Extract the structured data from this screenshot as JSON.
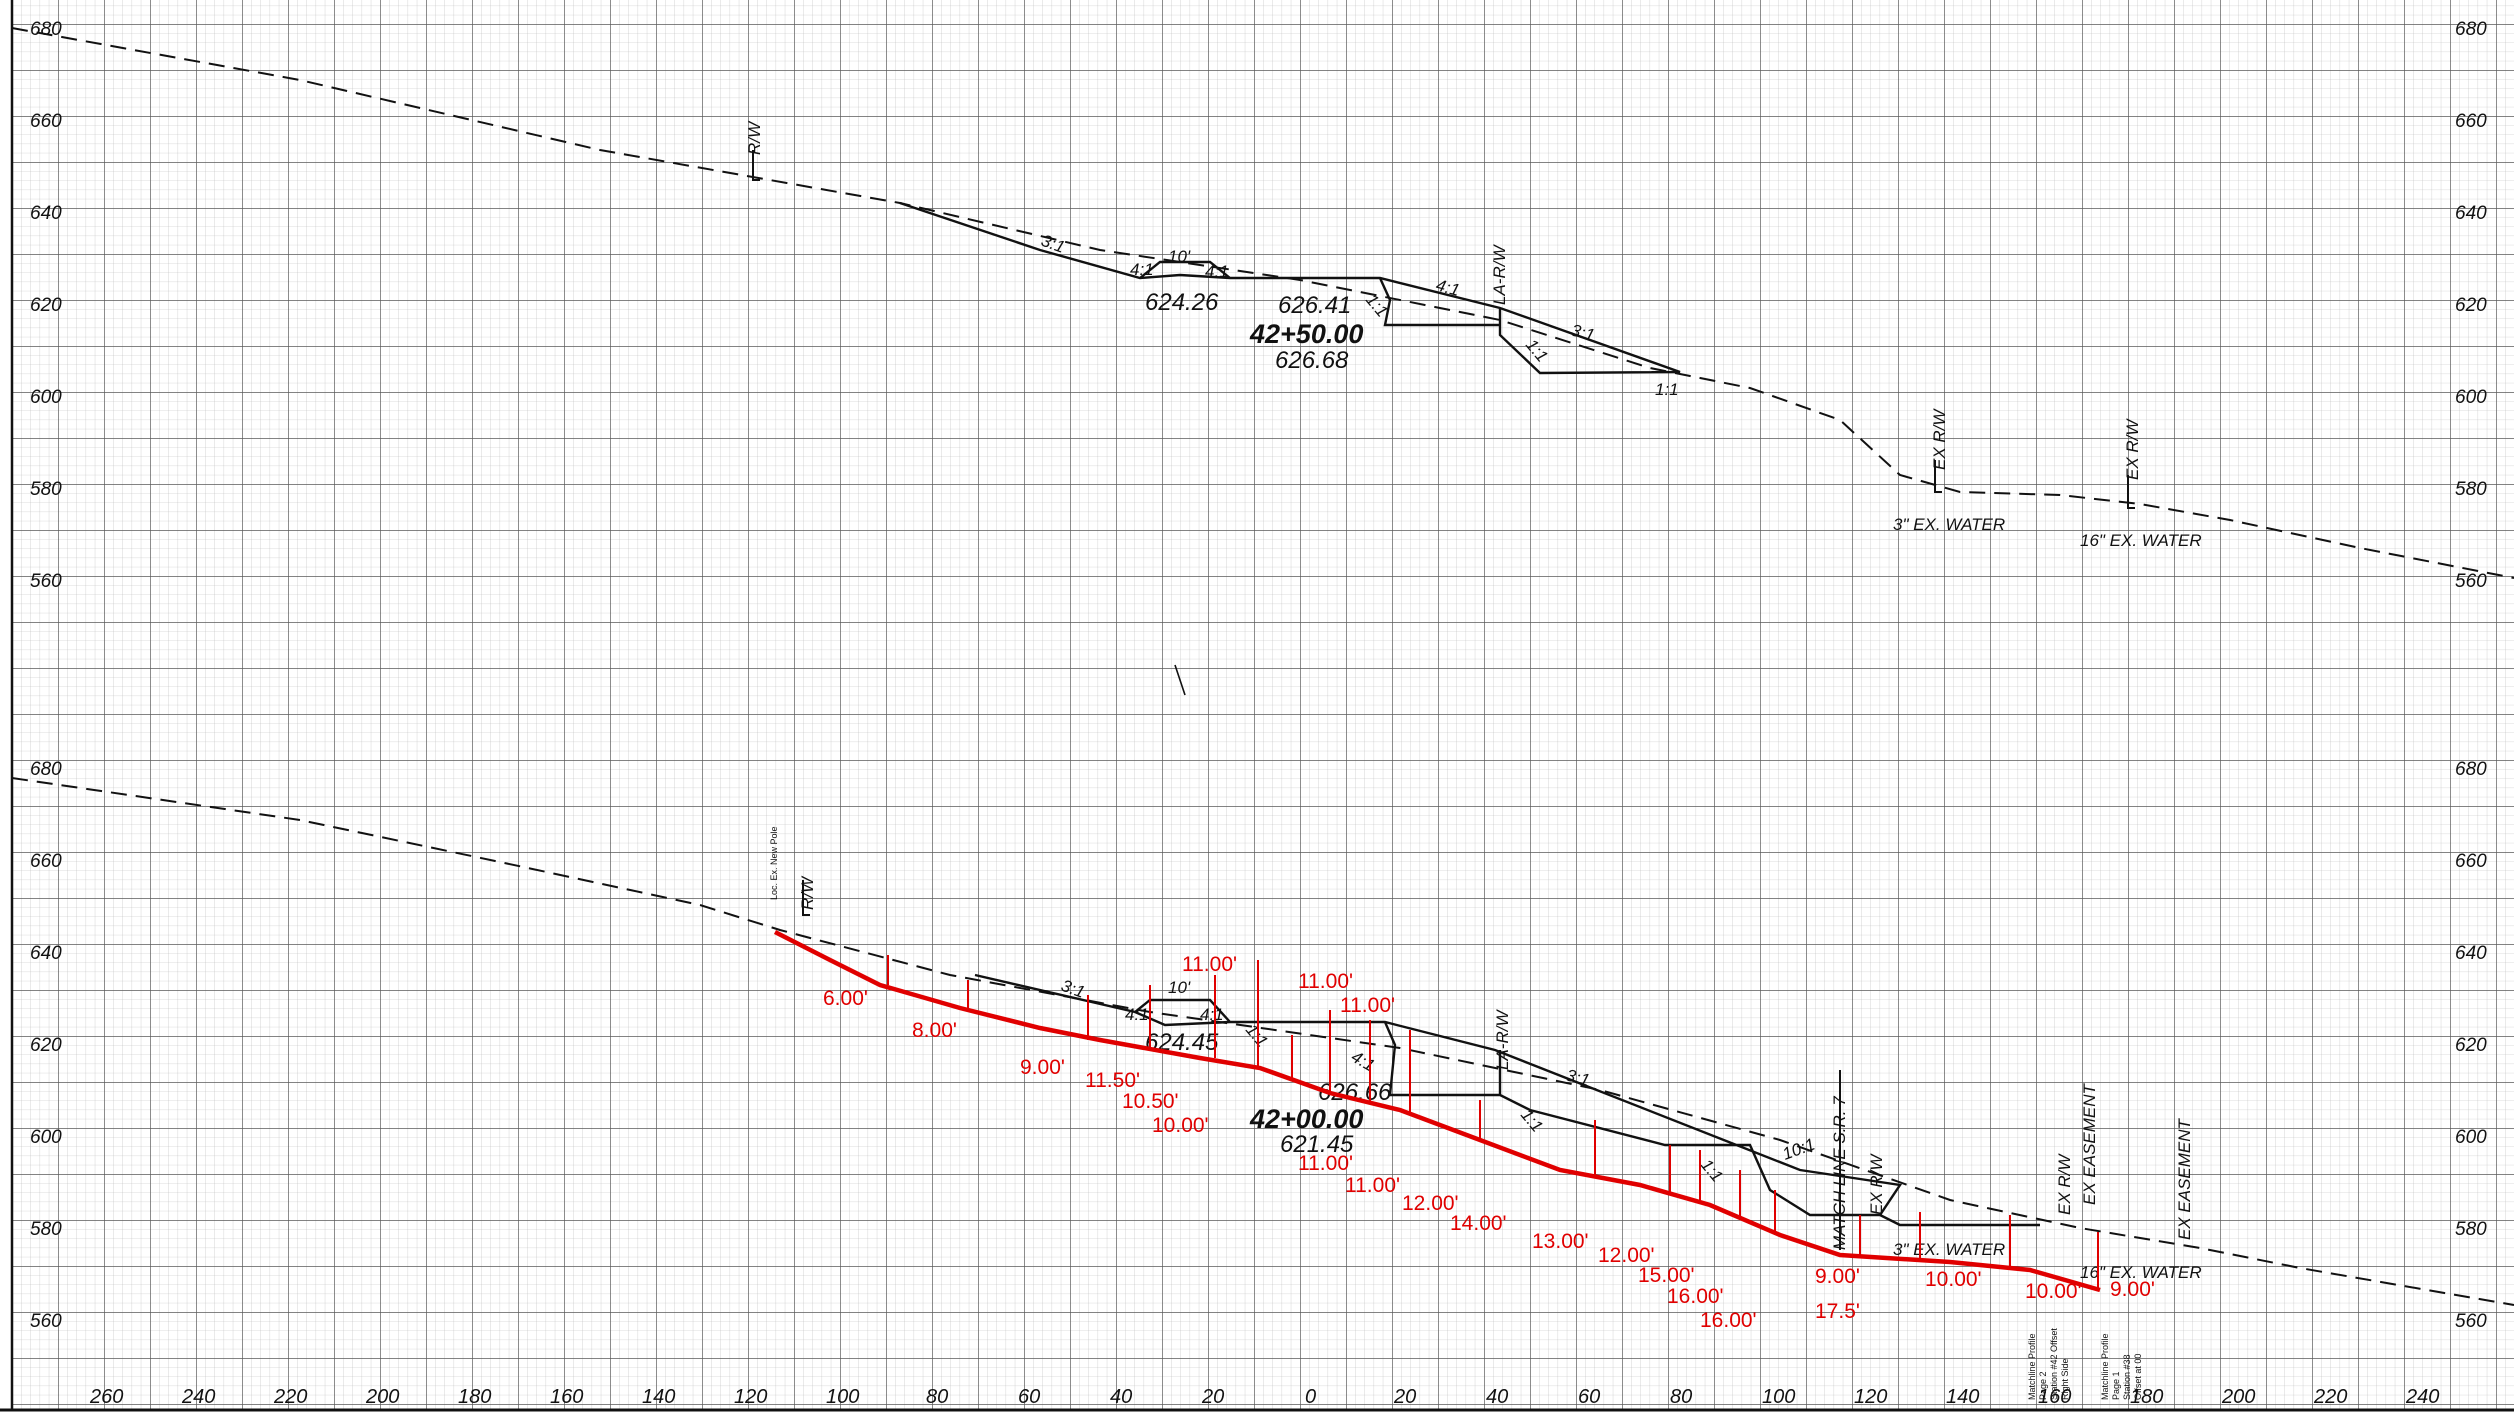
{
  "sheet": {
    "upper_section": {
      "station": "42+50.00",
      "labels": {
        "rw": "R/W",
        "la_rw": "LA-R/W",
        "ex_rw": "EX R/W",
        "ex_rw2": "EX R/W",
        "elev_ditch": "624.26",
        "elev_cl": "626.41",
        "elev_ground": "626.68",
        "width": "10'",
        "slope_a": "3:1",
        "slope_b": "4:1",
        "slope_c": "4:1",
        "slope_d": "1:1",
        "slope_e": "4:1",
        "slope_f": "3:1",
        "slope_g": "1:1",
        "slope_h": "1:1",
        "water3": "3\" EX. WATER",
        "water16": "16\" EX. WATER"
      }
    },
    "lower_section": {
      "station": "42+00.00",
      "labels": {
        "rw": "R/W",
        "la_rw": "LA-R/W",
        "pole_note": "Loc. Ex. New Pole",
        "elev_ditch": "624.45",
        "elev_cl": "626.66",
        "elev_ground": "621.45",
        "width": "10'",
        "slope_a": "3:1",
        "slope_b": "4:1",
        "slope_c": "4:1",
        "slope_d": "1:1",
        "slope_e": "4:1",
        "slope_f": "3:1",
        "slope_g": "1:1",
        "slope_h": "1:1",
        "slope_i": "10:1",
        "match_line": "MATCH LINE S.R. 7",
        "ex_rw": "EX R/W",
        "ex_rw2": "EX R/W",
        "ex_easement": "EX EASEMENT",
        "ex_easement2": "EX EASEMENT",
        "water3": "3\" EX. WATER",
        "water16": "16\" EX. WATER",
        "note1": "Matchline Profile",
        "note2": "Page 2",
        "note3": "Station #42 Offset",
        "note4": "Right Side",
        "note5": "Matchline Profile",
        "note6": "Page 1",
        "note7": "Station #38",
        "note8": "Offset at 00"
      },
      "depth_annotations": [
        "6.00'",
        "8.00'",
        "9.00'",
        "11.50'",
        "10.50'",
        "10.00'",
        "11.00'",
        "11.00'",
        "11.00'",
        "11.00'",
        "11.00'",
        "12.00'",
        "14.00'",
        "13.00'",
        "12.00'",
        "15.00'",
        "16.00'",
        "16.00'",
        "9.00'",
        "17.5'",
        "10.00'",
        "10.00'",
        "9.00'"
      ]
    },
    "elevation_labels": [
      "680",
      "660",
      "640",
      "620",
      "600",
      "580",
      "560"
    ],
    "offset_labels": [
      "260",
      "240",
      "220",
      "200",
      "180",
      "160",
      "140",
      "120",
      "100",
      "80",
      "60",
      "40",
      "20",
      "0",
      "20",
      "40",
      "60",
      "80",
      "100",
      "120",
      "140",
      "160",
      "180",
      "200",
      "220",
      "240"
    ]
  }
}
